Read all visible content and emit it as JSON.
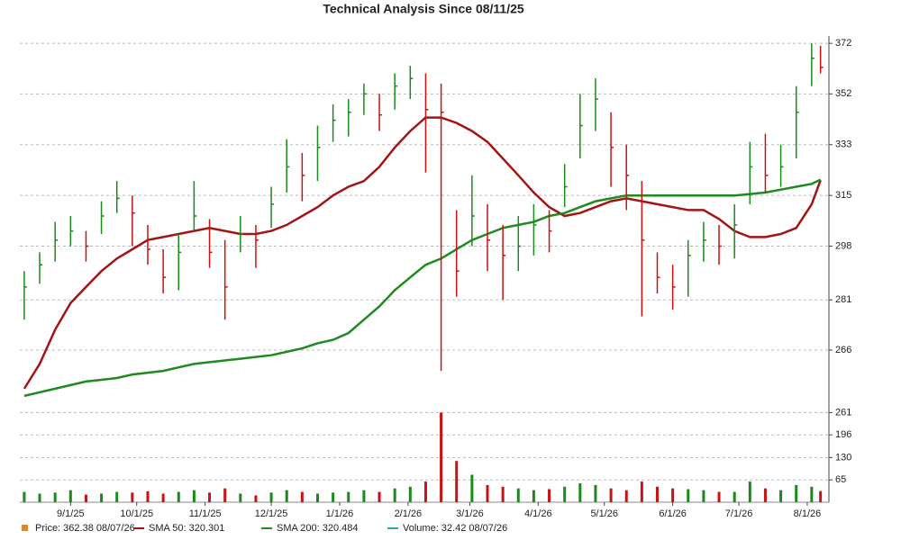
{
  "chart_data": {
    "type": "ohlc",
    "title": "Technical Analysis Since 08/11/25",
    "log_scale": true,
    "grid": true,
    "up_color": "#1a8a1a",
    "down_color": "#cc1111",
    "x": [
      "2025-08-11",
      "2025-08-18",
      "2025-08-25",
      "2025-09-01",
      "2025-09-08",
      "2025-09-15",
      "2025-09-22",
      "2025-09-29",
      "2025-10-06",
      "2025-10-13",
      "2025-10-20",
      "2025-10-27",
      "2025-11-03",
      "2025-11-10",
      "2025-11-17",
      "2025-11-24",
      "2025-12-01",
      "2025-12-08",
      "2025-12-15",
      "2025-12-22",
      "2025-12-29",
      "2026-01-05",
      "2026-01-12",
      "2026-01-19",
      "2026-01-26",
      "2026-02-02",
      "2026-02-09",
      "2026-02-16",
      "2026-02-23",
      "2026-03-02",
      "2026-03-09",
      "2026-03-16",
      "2026-03-23",
      "2026-03-30",
      "2026-04-06",
      "2026-04-13",
      "2026-04-20",
      "2026-04-27",
      "2026-05-04",
      "2026-05-11",
      "2026-05-18",
      "2026-05-25",
      "2026-06-01",
      "2026-06-08",
      "2026-06-15",
      "2026-06-22",
      "2026-06-29",
      "2026-07-06",
      "2026-07-13",
      "2026-07-20",
      "2026-07-27",
      "2026-08-03",
      "2026-08-07"
    ],
    "high": [
      290,
      296,
      306,
      308,
      303,
      313,
      320,
      315,
      305,
      297,
      302,
      320,
      307,
      300,
      308,
      305,
      318,
      335,
      330,
      340,
      348,
      350,
      356,
      352,
      360,
      363,
      360,
      356,
      310,
      322,
      312,
      305,
      308,
      312,
      310,
      326,
      352,
      358,
      345,
      333,
      320,
      296,
      292,
      300,
      306,
      305,
      312,
      334,
      337,
      333,
      355,
      372,
      371
    ],
    "low": [
      275,
      286,
      293,
      298,
      293,
      302,
      309,
      298,
      292,
      283,
      284,
      303,
      291,
      275,
      296,
      291,
      304,
      316,
      313,
      320,
      334,
      336,
      344,
      338,
      346,
      350,
      323,
      260,
      282,
      298,
      290,
      281,
      290,
      295,
      296,
      311,
      328,
      338,
      318,
      310,
      276,
      283,
      278,
      282,
      293,
      292,
      294,
      312,
      316,
      318,
      328,
      355,
      360
    ],
    "close": [
      285,
      292,
      300,
      303,
      298,
      308,
      314,
      309,
      297,
      288,
      296,
      308,
      296,
      285,
      302,
      300,
      312,
      325,
      322,
      332,
      342,
      345,
      352,
      344,
      355,
      358,
      346,
      345,
      290,
      308,
      300,
      295,
      298,
      305,
      303,
      318,
      340,
      350,
      332,
      322,
      300,
      288,
      285,
      295,
      300,
      298,
      305,
      325,
      322,
      325,
      345,
      366,
      362.38
    ],
    "series": [
      {
        "color": "#a31515",
        "values": [
          255,
          262,
          272,
          280,
          285,
          290,
          294,
          297,
          300,
          301,
          302,
          303,
          304,
          303,
          302,
          302,
          303,
          305,
          308,
          311,
          315,
          318,
          320,
          325,
          332,
          338,
          343,
          343,
          341,
          338,
          334,
          328,
          322,
          316,
          311,
          308,
          309,
          311,
          313,
          314,
          313,
          312,
          311,
          310,
          310,
          307,
          303,
          301,
          301,
          302,
          304,
          312,
          320.301
        ]
      },
      {
        "color": "#1f8a1f",
        "values": [
          253,
          254,
          255,
          256,
          257,
          257.5,
          258,
          259,
          259.5,
          260,
          261,
          262,
          262.5,
          263,
          263.5,
          264,
          264.5,
          265.5,
          266.5,
          268,
          269,
          271,
          275,
          279,
          284,
          288,
          292,
          294,
          297,
          300,
          302,
          304,
          305,
          306,
          308,
          309,
          311,
          313,
          314,
          315,
          315,
          315,
          315,
          315,
          315,
          315,
          315,
          315.5,
          316,
          317,
          318,
          319,
          320.484
        ]
      }
    ],
    "xlim": [
      "2025-08-09",
      "2026-08-10"
    ],
    "xticks": [
      {
        "value": "2025-09-01",
        "label": "9/1/25"
      },
      {
        "value": "2025-10-01",
        "label": "10/1/25"
      },
      {
        "value": "2025-11-01",
        "label": "11/1/25"
      },
      {
        "value": "2025-12-01",
        "label": "12/1/25"
      },
      {
        "value": "2026-01-01",
        "label": "1/1/26"
      },
      {
        "value": "2026-02-01",
        "label": "2/1/26"
      },
      {
        "value": "2026-03-01",
        "label": "3/1/26"
      },
      {
        "value": "2026-04-01",
        "label": "4/1/26"
      },
      {
        "value": "2026-05-01",
        "label": "5/1/26"
      },
      {
        "value": "2026-06-01",
        "label": "6/1/26"
      },
      {
        "value": "2026-07-01",
        "label": "7/1/26"
      },
      {
        "value": "2026-08-01",
        "label": "8/1/26"
      }
    ],
    "ylim": [
      250,
      375
    ],
    "yticks": [
      266,
      281,
      298,
      315,
      333,
      352,
      372
    ],
    "volume": {
      "values": [
        30,
        25,
        28,
        35,
        22,
        25,
        30,
        28,
        32,
        25,
        30,
        35,
        28,
        40,
        25,
        20,
        28,
        35,
        30,
        25,
        28,
        30,
        35,
        30,
        40,
        45,
        60,
        261,
        120,
        80,
        50,
        45,
        40,
        35,
        38,
        45,
        55,
        50,
        40,
        35,
        60,
        45,
        40,
        38,
        35,
        30,
        30,
        60,
        40,
        35,
        50,
        45,
        32.42
      ],
      "ylim": [
        0,
        262
      ],
      "yticks": [
        65,
        130,
        196,
        261
      ]
    },
    "legend": [
      {
        "label": "Price: 362.38  08/07/26",
        "color": "#e08a1e",
        "marker": "square"
      },
      {
        "label": "SMA 50: 320.301",
        "color": "#a31515",
        "marker": "line"
      },
      {
        "label": "SMA 200: 320.484",
        "color": "#1f8a1f",
        "marker": "line"
      },
      {
        "label": "Volume: 32.42  08/07/26",
        "color": "#2aa8a8",
        "marker": "line"
      }
    ]
  }
}
